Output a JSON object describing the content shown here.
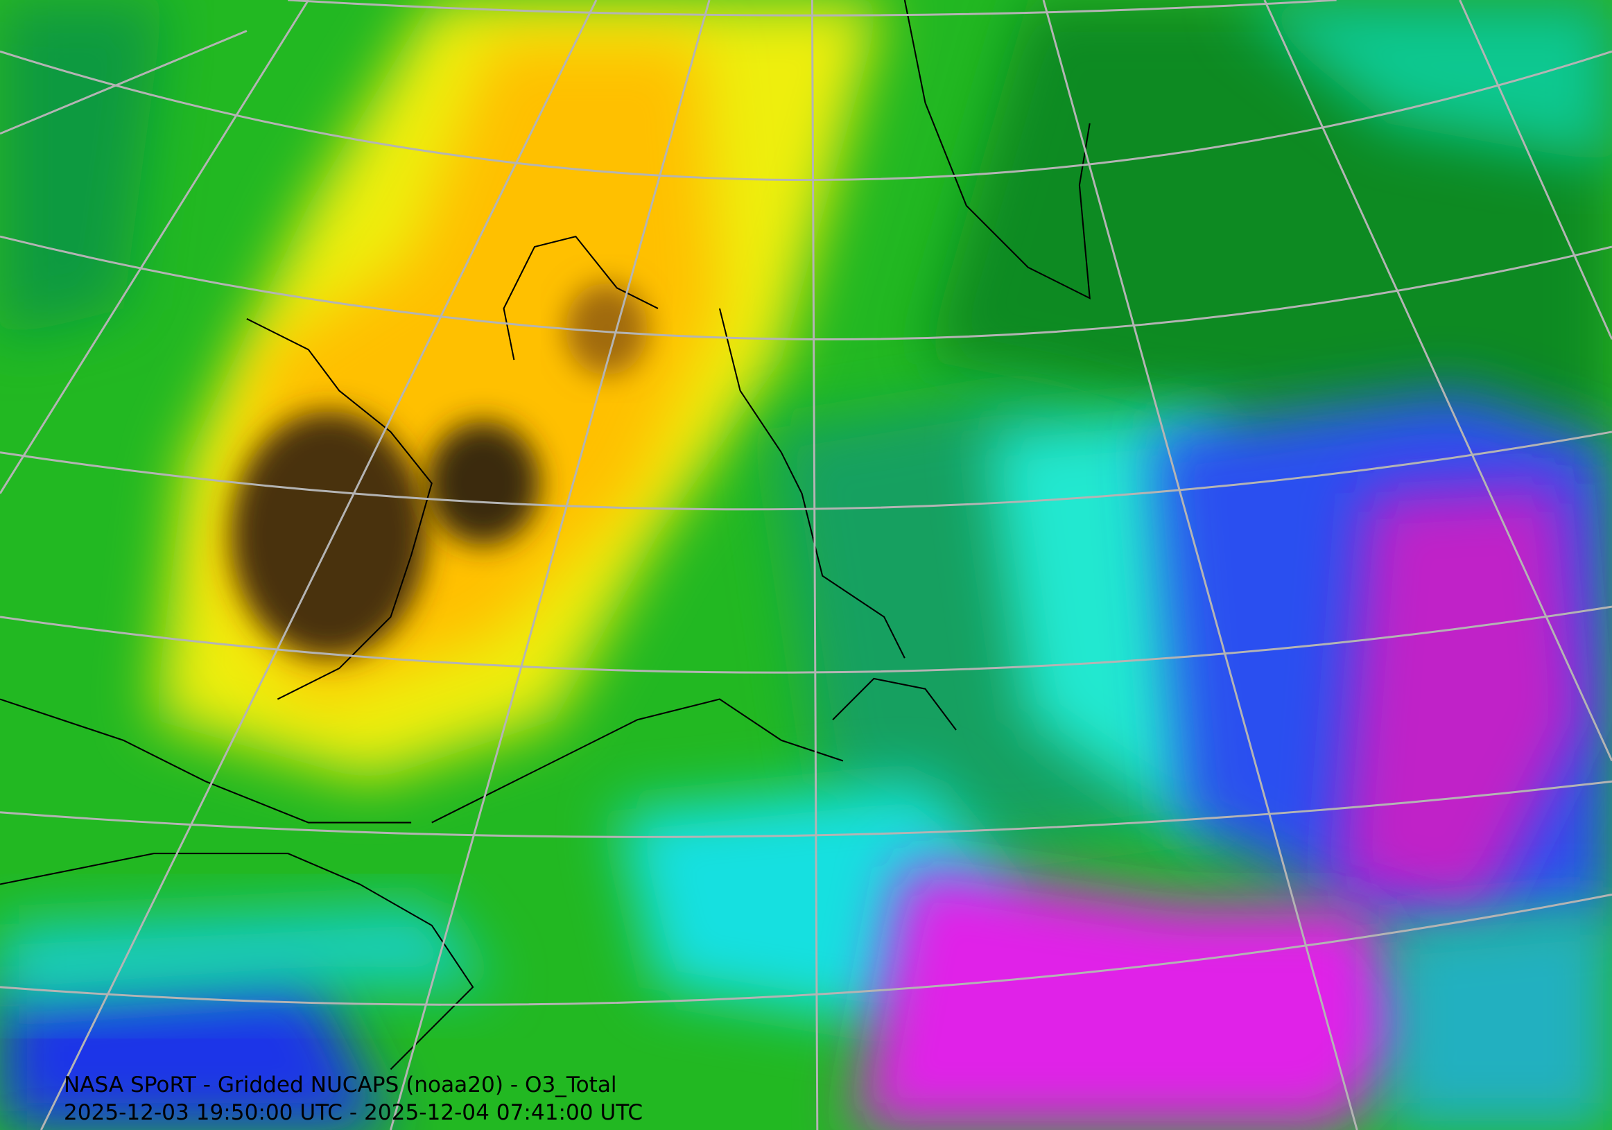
{
  "caption": {
    "title": "NASA SPoRT - Gridded NUCAPS (noaa20) - O3_Total",
    "time_range": "2025-12-03 19:50:00 UTC - 2025-12-04 07:41:00 UTC"
  }
}
